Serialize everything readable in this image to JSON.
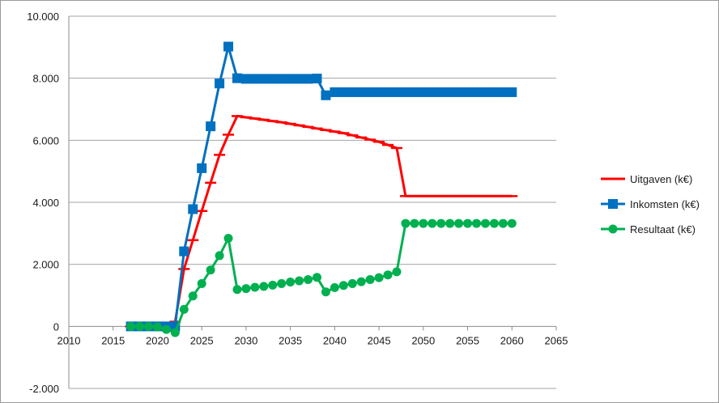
{
  "chart_data": {
    "type": "line",
    "title": "",
    "xlabel": "",
    "ylabel": "",
    "xlim": [
      2010,
      2065
    ],
    "ylim": [
      -2000,
      10000
    ],
    "x_ticks": [
      2010,
      2015,
      2020,
      2025,
      2030,
      2035,
      2040,
      2045,
      2050,
      2055,
      2060,
      2065
    ],
    "x_tick_labels": [
      "2010",
      "2015",
      "2020",
      "2025",
      "2030",
      "2035",
      "2040",
      "2045",
      "2050",
      "2055",
      "2060",
      "2065"
    ],
    "y_ticks": [
      -2000,
      0,
      2000,
      4000,
      6000,
      8000,
      10000
    ],
    "y_tick_labels": [
      "-2.000",
      "0",
      "2.000",
      "4.000",
      "6.000",
      "8.000",
      "10.000"
    ],
    "grid": "horizontal",
    "legend_position": "right",
    "x": [
      2017,
      2018,
      2019,
      2020,
      2021,
      2022,
      2023,
      2024,
      2025,
      2026,
      2027,
      2028,
      2029,
      2030,
      2031,
      2032,
      2033,
      2034,
      2035,
      2036,
      2037,
      2038,
      2039,
      2040,
      2041,
      2042,
      2043,
      2044,
      2045,
      2046,
      2047,
      2048,
      2049,
      2050,
      2051,
      2052,
      2053,
      2054,
      2055,
      2056,
      2057,
      2058,
      2059,
      2060
    ],
    "series": [
      {
        "name": "Uitgaven (k€)",
        "color": "#ff0000",
        "marker": "dash",
        "values": [
          0,
          0,
          0,
          0,
          0,
          150,
          1850,
          2780,
          3720,
          4630,
          5530,
          6180,
          6780,
          6740,
          6700,
          6660,
          6620,
          6580,
          6530,
          6480,
          6430,
          6380,
          6330,
          6280,
          6230,
          6160,
          6090,
          6020,
          5950,
          5850,
          5750,
          4200,
          4200,
          4200,
          4200,
          4200,
          4200,
          4200,
          4200,
          4200,
          4200,
          4200,
          4200,
          4200
        ]
      },
      {
        "name": "Inkomsten (k€)",
        "color": "#0070c0",
        "marker": "square",
        "values": [
          0,
          0,
          0,
          0,
          0,
          0,
          2420,
          3780,
          5100,
          6450,
          7830,
          9020,
          8000,
          7980,
          7980,
          7980,
          7980,
          7980,
          7980,
          7980,
          7980,
          7990,
          7450,
          7550,
          7550,
          7550,
          7550,
          7550,
          7550,
          7550,
          7550,
          7550,
          7550,
          7550,
          7550,
          7550,
          7550,
          7550,
          7550,
          7550,
          7550,
          7550,
          7550,
          7550
        ]
      },
      {
        "name": "Resultaat (k€)",
        "color": "#00b050",
        "marker": "circle",
        "values": [
          0,
          0,
          0,
          -20,
          -100,
          -200,
          550,
          980,
          1380,
          1820,
          2280,
          2840,
          1190,
          1220,
          1260,
          1290,
          1330,
          1380,
          1430,
          1470,
          1510,
          1580,
          1110,
          1250,
          1320,
          1380,
          1440,
          1510,
          1570,
          1660,
          1760,
          3320,
          3320,
          3320,
          3320,
          3320,
          3320,
          3320,
          3320,
          3320,
          3320,
          3320,
          3320,
          3320
        ]
      }
    ]
  }
}
